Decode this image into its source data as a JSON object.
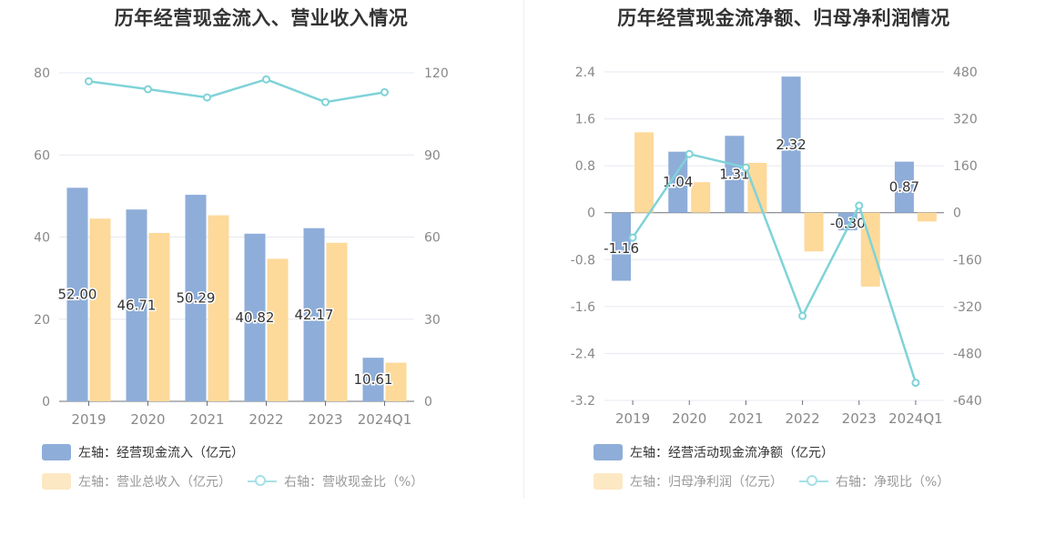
{
  "colors": {
    "bar_blue": "#8eadd9",
    "bar_yellow": "#fdd99a",
    "line": "#7fd3d8",
    "grid": "#e6e8f0"
  },
  "chart_data": [
    {
      "type": "bar",
      "title": "历年经营现金流入、营业收入情况",
      "categories": [
        "2019",
        "2020",
        "2021",
        "2022",
        "2023",
        "2024Q1"
      ],
      "y_left": {
        "range": [
          0,
          80
        ],
        "ticks": [
          "0",
          "20",
          "40",
          "60",
          "80"
        ]
      },
      "y_right": {
        "range": [
          0,
          120
        ],
        "ticks": [
          "0",
          "30",
          "60",
          "90",
          "120"
        ]
      },
      "series": [
        {
          "name": "左轴：经营现金流入（亿元）",
          "axis": "left",
          "kind": "bar",
          "color": "#8eadd9",
          "values": [
            52.0,
            46.71,
            50.29,
            40.82,
            42.17,
            10.61
          ],
          "labels": [
            "52.00",
            "46.71",
            "50.29",
            "40.82",
            "42.17",
            "10.61"
          ]
        },
        {
          "name": "左轴：营业总收入（亿元）",
          "axis": "left",
          "kind": "bar",
          "color": "#fdd99a",
          "values": [
            44.5,
            41.0,
            45.3,
            34.7,
            38.6,
            9.4
          ]
        },
        {
          "name": "右轴：营收现金比（%）",
          "axis": "right",
          "kind": "line",
          "color": "#7fd3d8",
          "values": [
            116.9,
            114.0,
            111.0,
            117.6,
            109.3,
            112.9
          ]
        }
      ],
      "grid": true,
      "legend_position": "bottom-left"
    },
    {
      "type": "bar",
      "title": "历年经营现金流净额、归母净利润情况",
      "categories": [
        "2019",
        "2020",
        "2021",
        "2022",
        "2023",
        "2024Q1"
      ],
      "y_left": {
        "range": [
          -3.2,
          2.4
        ],
        "ticks": [
          "-3.2",
          "-2.4",
          "-1.6",
          "-0.8",
          "0",
          "0.8",
          "1.6",
          "2.4"
        ]
      },
      "y_right": {
        "range": [
          -640,
          480
        ],
        "ticks": [
          "-640",
          "-480",
          "-320",
          "-160",
          "0",
          "160",
          "320",
          "480"
        ]
      },
      "series": [
        {
          "name": "左轴：经营活动现金流净额（亿元）",
          "axis": "left",
          "kind": "bar",
          "color": "#8eadd9",
          "values": [
            -1.16,
            1.04,
            1.31,
            2.32,
            -0.3,
            0.87
          ],
          "labels": [
            "-1.16",
            "1.04",
            "1.31",
            "2.32",
            "-0.30",
            "0.87"
          ]
        },
        {
          "name": "左轴：归母净利润（亿元）",
          "axis": "left",
          "kind": "bar",
          "color": "#fdd99a",
          "values": [
            1.37,
            0.52,
            0.85,
            -0.66,
            -1.26,
            -0.15
          ]
        },
        {
          "name": "右轴：净现比（%）",
          "axis": "right",
          "kind": "line",
          "color": "#7fd3d8",
          "values": [
            -85,
            200,
            154,
            -352,
            24,
            -580
          ]
        }
      ],
      "grid": true,
      "legend_position": "bottom-left"
    }
  ]
}
